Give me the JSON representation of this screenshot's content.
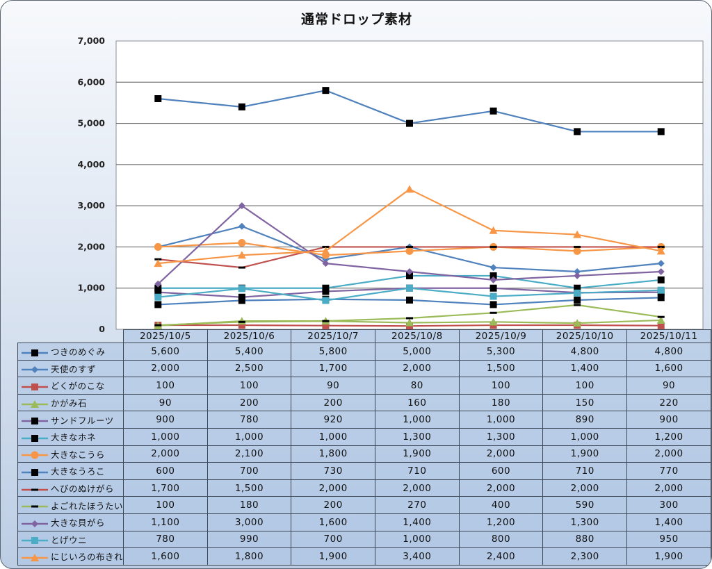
{
  "chart_data": {
    "type": "line",
    "title": "通常ドロップ素材",
    "xlabel": "",
    "ylabel": "",
    "ylim": [
      0,
      7000
    ],
    "yticks": [
      0,
      1000,
      2000,
      3000,
      4000,
      5000,
      6000,
      7000
    ],
    "ytick_labels": [
      "0",
      "1,000",
      "2,000",
      "3,000",
      "4,000",
      "5,000",
      "6,000",
      "7,000"
    ],
    "grid": true,
    "legend": "data-table",
    "categories": [
      "2025/10/5",
      "2025/10/6",
      "2025/10/7",
      "2025/10/8",
      "2025/10/9",
      "2025/10/10",
      "2025/10/11"
    ],
    "series": [
      {
        "name": "つきのめぐみ",
        "color": "#4f81bd",
        "marker": "square-black",
        "values": [
          5600,
          5400,
          5800,
          5000,
          5300,
          4800,
          4800
        ],
        "labels": [
          "5,600",
          "5,400",
          "5,800",
          "5,000",
          "5,300",
          "4,800",
          "4,800"
        ]
      },
      {
        "name": "天使のすず",
        "color": "#4f81bd",
        "marker": "diamond",
        "values": [
          2000,
          2500,
          1700,
          2000,
          1500,
          1400,
          1600
        ],
        "labels": [
          "2,000",
          "2,500",
          "1,700",
          "2,000",
          "1,500",
          "1,400",
          "1,600"
        ]
      },
      {
        "name": "どくがのこな",
        "color": "#c0504d",
        "marker": "square",
        "values": [
          100,
          100,
          90,
          80,
          100,
          100,
          90
        ],
        "labels": [
          "100",
          "100",
          "90",
          "80",
          "100",
          "100",
          "90"
        ]
      },
      {
        "name": "かがみ石",
        "color": "#9bbb59",
        "marker": "triangle",
        "values": [
          90,
          200,
          200,
          160,
          180,
          150,
          220
        ],
        "labels": [
          "90",
          "200",
          "200",
          "160",
          "180",
          "150",
          "220"
        ]
      },
      {
        "name": "サンドフルーツ",
        "color": "#8064a2",
        "marker": "square-black",
        "values": [
          900,
          780,
          920,
          1000,
          1000,
          890,
          900
        ],
        "labels": [
          "900",
          "780",
          "920",
          "1,000",
          "1,000",
          "890",
          "900"
        ]
      },
      {
        "name": "大きなホネ",
        "color": "#4bacc6",
        "marker": "square-black",
        "values": [
          1000,
          1000,
          1000,
          1300,
          1300,
          1000,
          1200
        ],
        "labels": [
          "1,000",
          "1,000",
          "1,000",
          "1,300",
          "1,300",
          "1,000",
          "1,200"
        ]
      },
      {
        "name": "大きなこうら",
        "color": "#f79646",
        "marker": "circle",
        "values": [
          2000,
          2100,
          1800,
          1900,
          2000,
          1900,
          2000
        ],
        "labels": [
          "2,000",
          "2,100",
          "1,800",
          "1,900",
          "2,000",
          "1,900",
          "2,000"
        ]
      },
      {
        "name": "大きなうろこ",
        "color": "#4f81bd",
        "marker": "square-black",
        "values": [
          600,
          700,
          730,
          710,
          600,
          710,
          770
        ],
        "labels": [
          "600",
          "700",
          "730",
          "710",
          "600",
          "710",
          "770"
        ]
      },
      {
        "name": "へびのぬけがら",
        "color": "#c0504d",
        "marker": "dash-black",
        "values": [
          1700,
          1500,
          2000,
          2000,
          2000,
          2000,
          2000
        ],
        "labels": [
          "1,700",
          "1,500",
          "2,000",
          "2,000",
          "2,000",
          "2,000",
          "2,000"
        ]
      },
      {
        "name": "よごれたほうたい",
        "color": "#9bbb59",
        "marker": "dash-black",
        "values": [
          100,
          180,
          200,
          270,
          400,
          590,
          300
        ],
        "labels": [
          "100",
          "180",
          "200",
          "270",
          "400",
          "590",
          "300"
        ]
      },
      {
        "name": "大きな貝がら",
        "color": "#8064a2",
        "marker": "diamond",
        "values": [
          1100,
          3000,
          1600,
          1400,
          1200,
          1300,
          1400
        ],
        "labels": [
          "1,100",
          "3,000",
          "1,600",
          "1,400",
          "1,200",
          "1,300",
          "1,400"
        ]
      },
      {
        "name": "とげウニ",
        "color": "#4bacc6",
        "marker": "square",
        "values": [
          780,
          990,
          700,
          1000,
          800,
          880,
          950
        ],
        "labels": [
          "780",
          "990",
          "700",
          "1,000",
          "800",
          "880",
          "950"
        ]
      },
      {
        "name": "にじいろの布きれ",
        "color": "#f79646",
        "marker": "triangle",
        "values": [
          1600,
          1800,
          1900,
          3400,
          2400,
          2300,
          1900
        ],
        "labels": [
          "1,600",
          "1,800",
          "1,900",
          "3,400",
          "2,400",
          "2,300",
          "1,900"
        ]
      }
    ]
  }
}
